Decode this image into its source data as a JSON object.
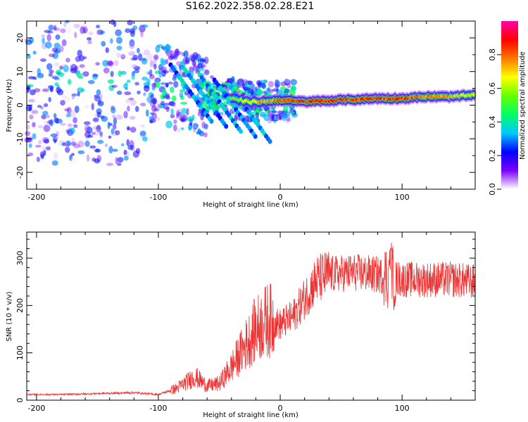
{
  "title": "S162.2022.358.02.28.E21",
  "chart_data": [
    {
      "type": "heatmap",
      "name": "spectrogram",
      "xlabel": "Height of straight line (km)",
      "ylabel": "Frequency (Hz)",
      "xlim": [
        -208,
        160
      ],
      "ylim": [
        -25,
        25
      ],
      "xticks": [
        -200,
        -100,
        0,
        100
      ],
      "yticks": [
        -20,
        -10,
        0,
        10,
        20
      ],
      "colorbar": {
        "label": "Normalized spectral amplitude",
        "range": [
          0,
          1
        ],
        "ticks": [
          0.0,
          0.2,
          0.4,
          0.6,
          0.8
        ],
        "colors": [
          "#ffffff",
          "#7a00ff",
          "#0000ff",
          "#00c8ff",
          "#00ff66",
          "#66ff00",
          "#ffff00",
          "#ff7700",
          "#ff0000",
          "#ff00aa"
        ]
      },
      "ridge": {
        "x": [
          -200,
          -150,
          -120,
          -100,
          -80,
          -60,
          -40,
          -25,
          -15,
          0,
          20,
          50,
          80,
          100,
          120,
          140,
          160
        ],
        "frequency": [
          8,
          7,
          7,
          6,
          4,
          3,
          2,
          1,
          1,
          1.5,
          1,
          1.5,
          2,
          2,
          2.5,
          2.5,
          3
        ],
        "amplitude": [
          0.2,
          0.2,
          0.2,
          0.3,
          0.4,
          0.5,
          0.6,
          0.7,
          0.8,
          0.85,
          0.95,
          0.9,
          0.9,
          0.9,
          0.85,
          0.8,
          0.7
        ]
      }
    },
    {
      "type": "line",
      "name": "snr",
      "xlabel": "Height of straight line (km)",
      "ylabel": "SNR (10 * v/v)",
      "xlim": [
        -208,
        160
      ],
      "ylim": [
        0,
        355
      ],
      "xticks": [
        -200,
        -100,
        0,
        100
      ],
      "yticks": [
        0,
        100,
        200,
        300
      ],
      "color": "#ee3333",
      "envelope": {
        "x": [
          -208,
          -180,
          -150,
          -120,
          -100,
          -85,
          -70,
          -60,
          -50,
          -40,
          -30,
          -20,
          -10,
          0,
          10,
          20,
          30,
          40,
          60,
          80,
          90,
          100,
          120,
          140,
          160
        ],
        "values": [
          12,
          12,
          14,
          16,
          12,
          25,
          50,
          30,
          35,
          70,
          110,
          150,
          170,
          160,
          175,
          215,
          255,
          265,
          270,
          265,
          260,
          255,
          255,
          255,
          250
        ]
      }
    }
  ]
}
